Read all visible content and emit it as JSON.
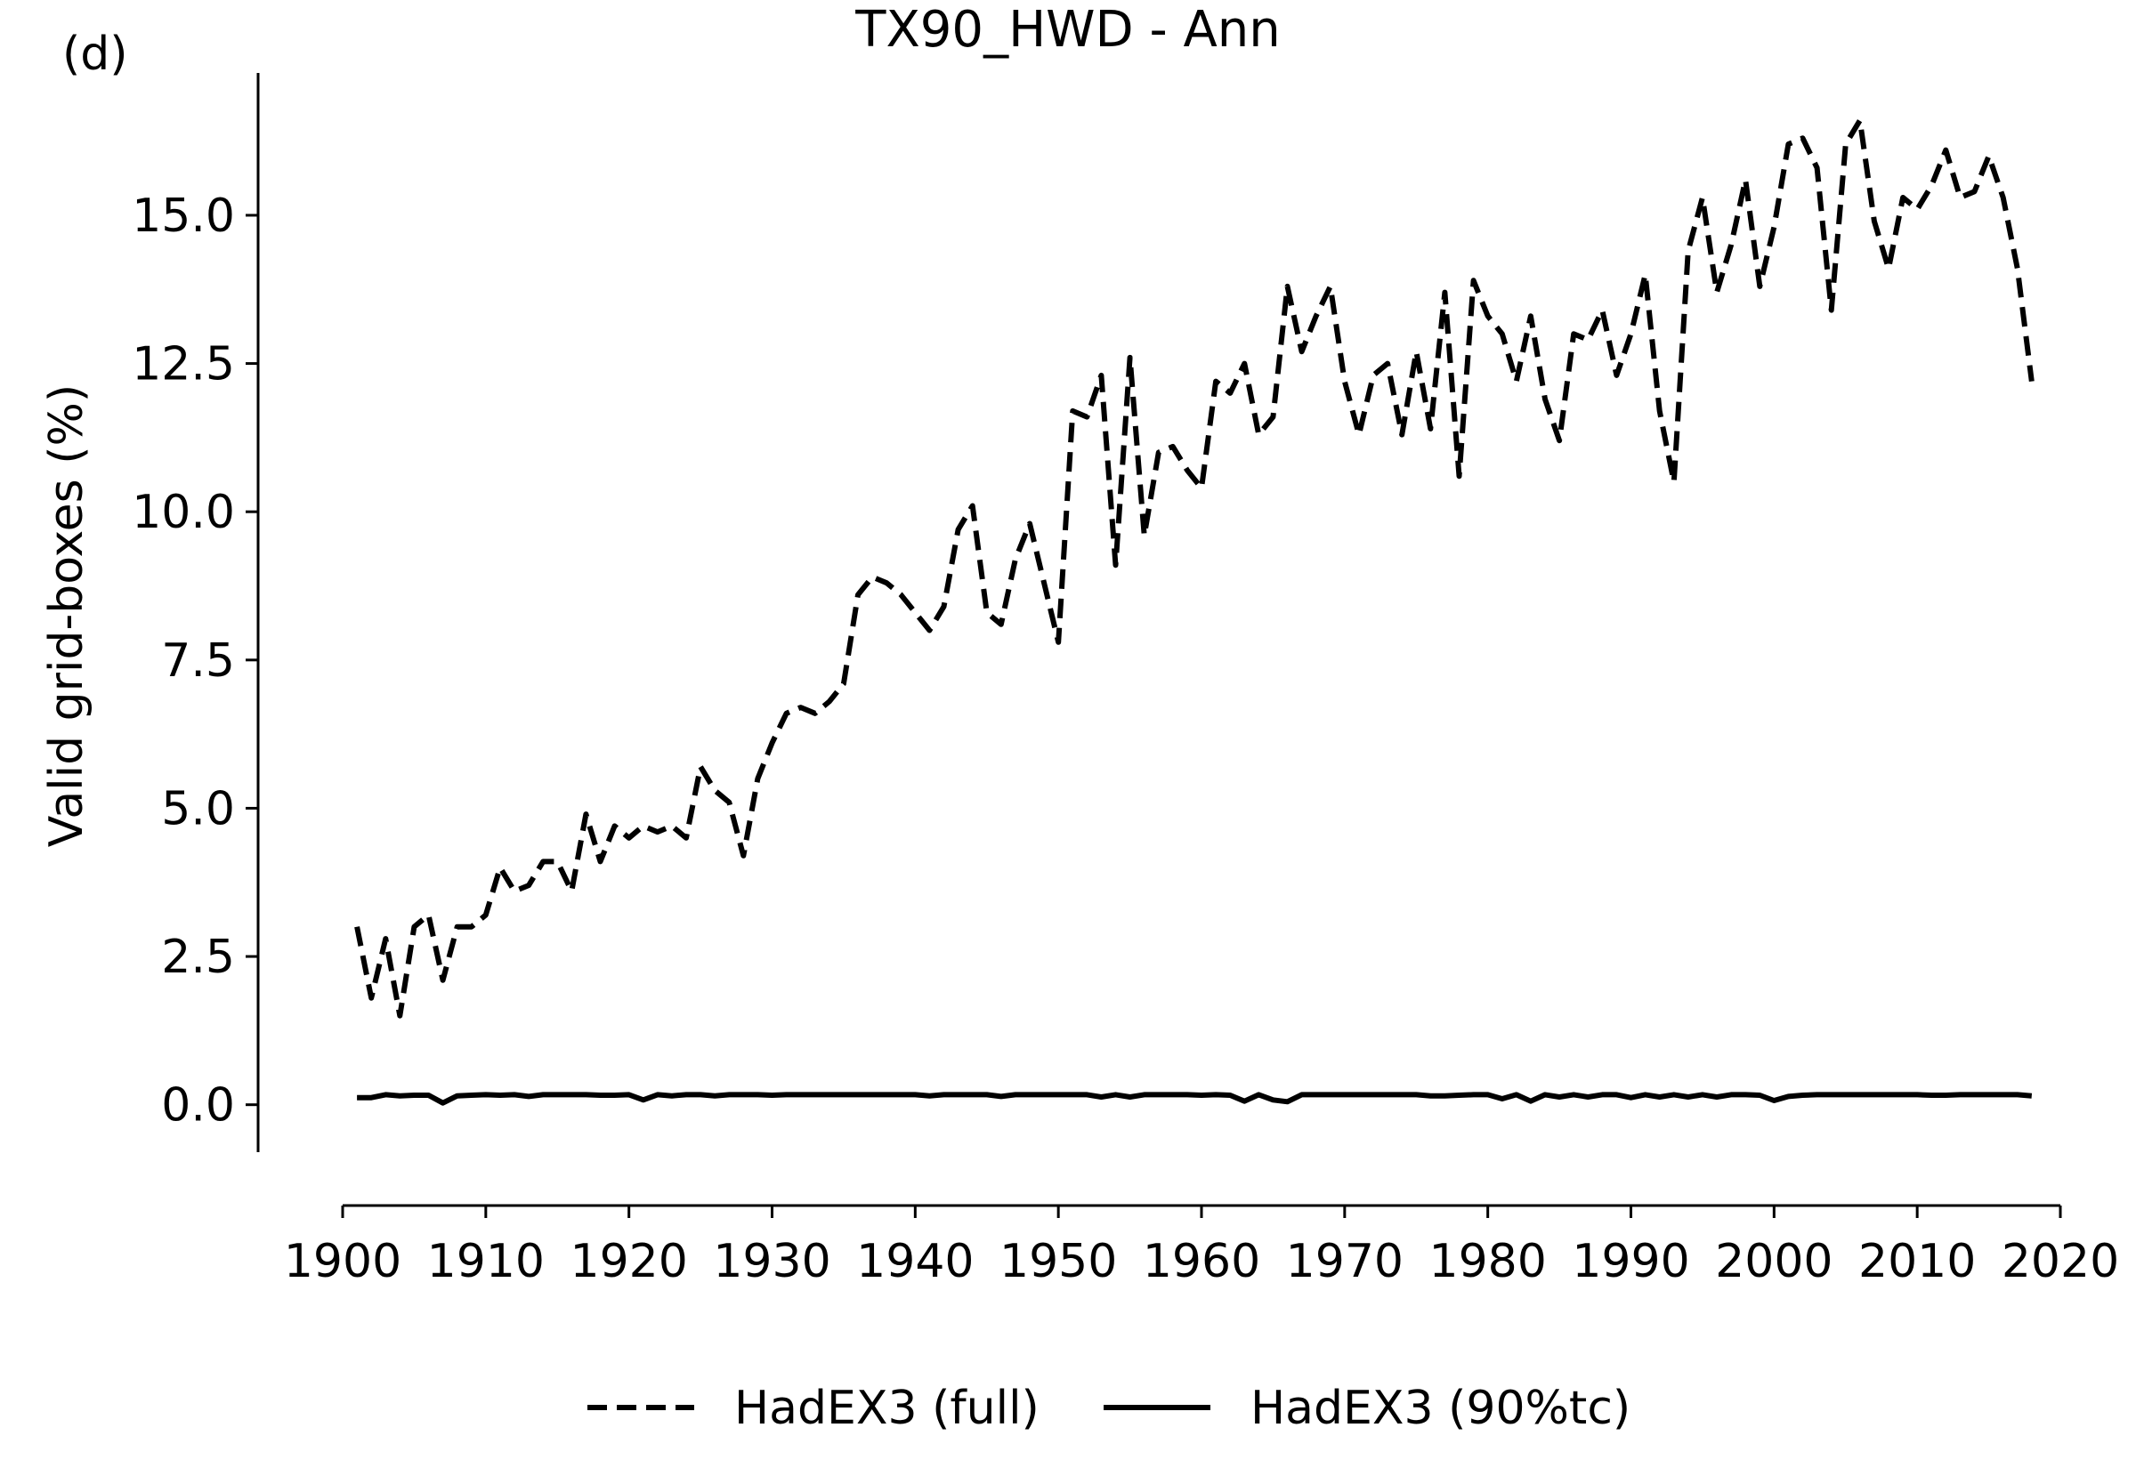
{
  "panel_label": "(d)",
  "chart_data": {
    "type": "line",
    "title": "TX90_HWD - Ann",
    "xlabel": "",
    "ylabel": "Valid grid-boxes (%)",
    "xlim": [
      1900,
      2020
    ],
    "ylim": [
      -0.8,
      17.4
    ],
    "x_ticks": [
      1900,
      1910,
      1920,
      1930,
      1940,
      1950,
      1960,
      1970,
      1980,
      1990,
      2000,
      2010,
      2020
    ],
    "x_tick_labels": [
      "1900",
      "1910",
      "1920",
      "1930",
      "1940",
      "1950",
      "1960",
      "1970",
      "1980",
      "1990",
      "2000",
      "2010",
      "2020"
    ],
    "y_ticks": [
      0,
      2.5,
      5,
      7.5,
      10,
      12.5,
      15
    ],
    "y_tick_labels": [
      "0.0",
      "2.5",
      "5.0",
      "7.5",
      "10.0",
      "12.5",
      "15.0"
    ],
    "grid": false,
    "legend_position": "bottom-center",
    "x": [
      1901,
      1902,
      1903,
      1904,
      1905,
      1906,
      1907,
      1908,
      1909,
      1910,
      1911,
      1912,
      1913,
      1914,
      1915,
      1916,
      1917,
      1918,
      1919,
      1920,
      1921,
      1922,
      1923,
      1924,
      1925,
      1926,
      1927,
      1928,
      1929,
      1930,
      1931,
      1932,
      1933,
      1934,
      1935,
      1936,
      1937,
      1938,
      1939,
      1940,
      1941,
      1942,
      1943,
      1944,
      1945,
      1946,
      1947,
      1948,
      1949,
      1950,
      1951,
      1952,
      1953,
      1954,
      1955,
      1956,
      1957,
      1958,
      1959,
      1960,
      1961,
      1962,
      1963,
      1964,
      1965,
      1966,
      1967,
      1968,
      1969,
      1970,
      1971,
      1972,
      1973,
      1974,
      1975,
      1976,
      1977,
      1978,
      1979,
      1980,
      1981,
      1982,
      1983,
      1984,
      1985,
      1986,
      1987,
      1988,
      1989,
      1990,
      1991,
      1992,
      1993,
      1994,
      1995,
      1996,
      1997,
      1998,
      1999,
      2000,
      2001,
      2002,
      2003,
      2004,
      2005,
      2006,
      2007,
      2008,
      2009,
      2010,
      2011,
      2012,
      2013,
      2014,
      2015,
      2016,
      2017,
      2018
    ],
    "series": [
      {
        "name": "HadEX3 (full)",
        "style": "dashed",
        "color": "#000000",
        "values": [
          3.0,
          1.8,
          2.8,
          1.5,
          3.0,
          3.2,
          2.1,
          3.0,
          3.0,
          3.2,
          4.0,
          3.6,
          3.7,
          4.1,
          4.1,
          3.6,
          4.9,
          4.1,
          4.7,
          4.5,
          4.7,
          4.6,
          4.7,
          4.5,
          5.7,
          5.3,
          5.1,
          4.2,
          5.5,
          6.1,
          6.6,
          6.7,
          6.6,
          6.8,
          7.1,
          8.6,
          8.9,
          8.8,
          8.6,
          8.3,
          8.0,
          8.4,
          9.7,
          10.1,
          8.3,
          8.1,
          9.2,
          9.8,
          8.8,
          7.8,
          11.7,
          11.6,
          12.3,
          9.1,
          12.6,
          9.6,
          11.0,
          11.1,
          10.7,
          10.4,
          12.2,
          12.0,
          12.5,
          11.3,
          11.6,
          13.8,
          12.7,
          13.3,
          13.8,
          12.2,
          11.3,
          12.3,
          12.5,
          11.3,
          12.7,
          11.4,
          13.7,
          10.6,
          13.9,
          13.3,
          13.0,
          12.2,
          13.3,
          11.9,
          11.2,
          13.0,
          12.9,
          13.4,
          12.3,
          13.0,
          14.0,
          11.7,
          10.5,
          14.4,
          15.3,
          13.7,
          14.5,
          15.6,
          13.8,
          14.8,
          16.2,
          16.3,
          15.8,
          13.4,
          16.2,
          16.6,
          14.9,
          14.1,
          15.3,
          15.1,
          15.5,
          16.1,
          15.3,
          15.4,
          16.0,
          15.3,
          14.1,
          12.2
        ]
      },
      {
        "name": "HadEX3 (90%tc)",
        "style": "solid",
        "color": "#000000",
        "values": [
          0.12,
          0.12,
          0.17,
          0.15,
          0.16,
          0.16,
          0.03,
          0.15,
          0.16,
          0.17,
          0.16,
          0.17,
          0.14,
          0.17,
          0.17,
          0.17,
          0.17,
          0.16,
          0.16,
          0.17,
          0.08,
          0.17,
          0.15,
          0.17,
          0.17,
          0.15,
          0.17,
          0.17,
          0.17,
          0.16,
          0.17,
          0.17,
          0.17,
          0.17,
          0.17,
          0.17,
          0.17,
          0.17,
          0.17,
          0.17,
          0.15,
          0.17,
          0.17,
          0.17,
          0.17,
          0.14,
          0.17,
          0.17,
          0.17,
          0.17,
          0.17,
          0.17,
          0.13,
          0.17,
          0.13,
          0.17,
          0.17,
          0.17,
          0.17,
          0.16,
          0.17,
          0.16,
          0.06,
          0.17,
          0.08,
          0.05,
          0.17,
          0.17,
          0.17,
          0.17,
          0.17,
          0.17,
          0.17,
          0.17,
          0.17,
          0.15,
          0.15,
          0.16,
          0.17,
          0.17,
          0.1,
          0.17,
          0.06,
          0.17,
          0.13,
          0.17,
          0.13,
          0.17,
          0.17,
          0.12,
          0.17,
          0.13,
          0.17,
          0.13,
          0.17,
          0.13,
          0.17,
          0.17,
          0.16,
          0.07,
          0.14,
          0.16,
          0.17,
          0.17,
          0.17,
          0.17,
          0.17,
          0.17,
          0.17,
          0.17,
          0.16,
          0.16,
          0.17,
          0.17,
          0.17,
          0.17,
          0.17,
          0.15
        ]
      }
    ]
  }
}
